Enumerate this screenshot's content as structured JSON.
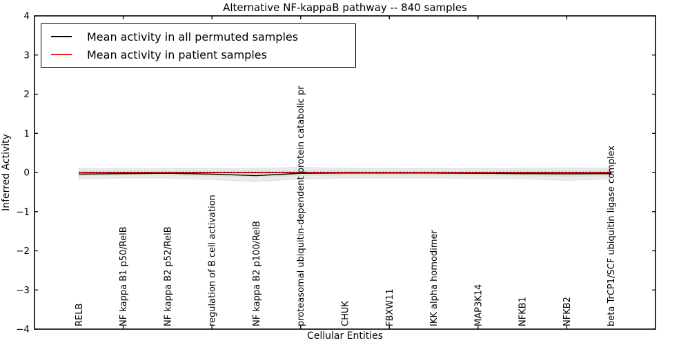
{
  "chart_data": {
    "type": "line",
    "title": "Alternative NF-kappaB pathway -- 840 samples",
    "xlabel": "Cellular Entities",
    "ylabel": "Inferred Activity",
    "xlim": [
      -1,
      13
    ],
    "ylim": [
      -4,
      4
    ],
    "grid": false,
    "legend_position": "upper left",
    "y_ticks": [
      {
        "v": 4,
        "label": "4"
      },
      {
        "v": 3,
        "label": "3"
      },
      {
        "v": 2,
        "label": "2"
      },
      {
        "v": 1,
        "label": "1"
      },
      {
        "v": 0,
        "label": "0"
      },
      {
        "v": -1,
        "label": "−1"
      },
      {
        "v": -2,
        "label": "−2"
      },
      {
        "v": -3,
        "label": "−3"
      },
      {
        "v": -4,
        "label": "−4"
      }
    ],
    "x_tick_positions": [
      1,
      3,
      5,
      7,
      9,
      11
    ],
    "categories": [
      "RELB",
      "NF kappa B1 p50/RelB",
      "NF kappa B2 p52/RelB",
      "regulation of B cell activation",
      "NF kappa B2 p100/RelB",
      "proteasomal ubiquitin-dependent protein catabolic pr",
      "CHUK",
      "FBXW11",
      "IKK alpha homodimer",
      "MAP3K14",
      "NFKB1",
      "NFKB2",
      "beta TrCP1/SCF ubiquitin ligase complex"
    ],
    "bands": [
      {
        "name": "permuted-spread-outer",
        "color": "#ebebeb",
        "edge": "#d6d6d6",
        "upper": [
          0.1,
          0.11,
          0.1,
          0.1,
          0.11,
          0.13,
          0.11,
          0.1,
          0.1,
          0.1,
          0.11,
          0.12,
          0.11
        ],
        "lower": [
          -0.16,
          -0.14,
          -0.14,
          -0.18,
          -0.23,
          -0.16,
          -0.14,
          -0.14,
          -0.14,
          -0.15,
          -0.16,
          -0.2,
          -0.16
        ]
      },
      {
        "name": "permuted-spread-inner",
        "color": "#e0e0e0",
        "edge": "none",
        "upper": [
          0.05,
          0.06,
          0.05,
          0.05,
          0.06,
          0.07,
          0.06,
          0.05,
          0.05,
          0.05,
          0.06,
          0.06,
          0.06
        ],
        "lower": [
          -0.09,
          -0.08,
          -0.08,
          -0.1,
          -0.13,
          -0.09,
          -0.08,
          -0.08,
          -0.08,
          -0.08,
          -0.09,
          -0.11,
          -0.09
        ]
      }
    ],
    "series": [
      {
        "name": "permuted-mean",
        "color": "#000000",
        "style": "solid",
        "width": 1.4,
        "values": [
          -0.04,
          -0.03,
          -0.02,
          -0.04,
          -0.08,
          -0.02,
          -0.015,
          -0.015,
          -0.015,
          -0.02,
          -0.03,
          -0.035,
          -0.03
        ]
      },
      {
        "name": "patient-mean",
        "color": "#f02015",
        "style": "solid",
        "width": 2,
        "values": [
          0.0,
          0.0,
          0.0,
          0.0,
          0.0,
          0.0,
          0.0,
          0.0,
          0.0,
          0.0,
          0.0,
          0.0,
          0.0
        ]
      },
      {
        "name": "zero-reference",
        "color": "#000000",
        "style": "dotted",
        "width": 1.6,
        "values": [
          0.0,
          0.0,
          0.0,
          0.0,
          0.0,
          0.0,
          0.0,
          0.0,
          0.0,
          0.0,
          0.0,
          0.0,
          0.0
        ]
      }
    ]
  },
  "legend": [
    {
      "label": "Mean activity in all permuted samples",
      "color": "#000000"
    },
    {
      "label": "Mean activity in patient samples",
      "color": "#f02015"
    }
  ]
}
